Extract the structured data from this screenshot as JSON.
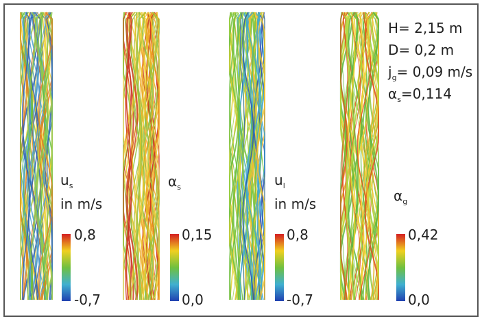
{
  "parameters": [
    {
      "text": "H= 2,15 m"
    },
    {
      "text": "D= 0,2 m"
    },
    {
      "symbol": "j",
      "subscript": "g",
      "text": "= 0,09 m/s"
    },
    {
      "symbol": "α",
      "subscript": "s",
      "text": "=0,114"
    }
  ],
  "panels": [
    {
      "symbol": "u",
      "subscript": "s",
      "unit": "in m/s",
      "max": "0,8",
      "min": "-0,7"
    },
    {
      "symbol": "α",
      "subscript": "s",
      "max": "0,15",
      "min": "0,0"
    },
    {
      "symbol": "u",
      "subscript": "l",
      "unit": "in m/s",
      "max": "0,8",
      "min": "-0,7"
    },
    {
      "symbol": "α",
      "subscript": "g",
      "max": "0,42",
      "min": "0,0"
    }
  ]
}
